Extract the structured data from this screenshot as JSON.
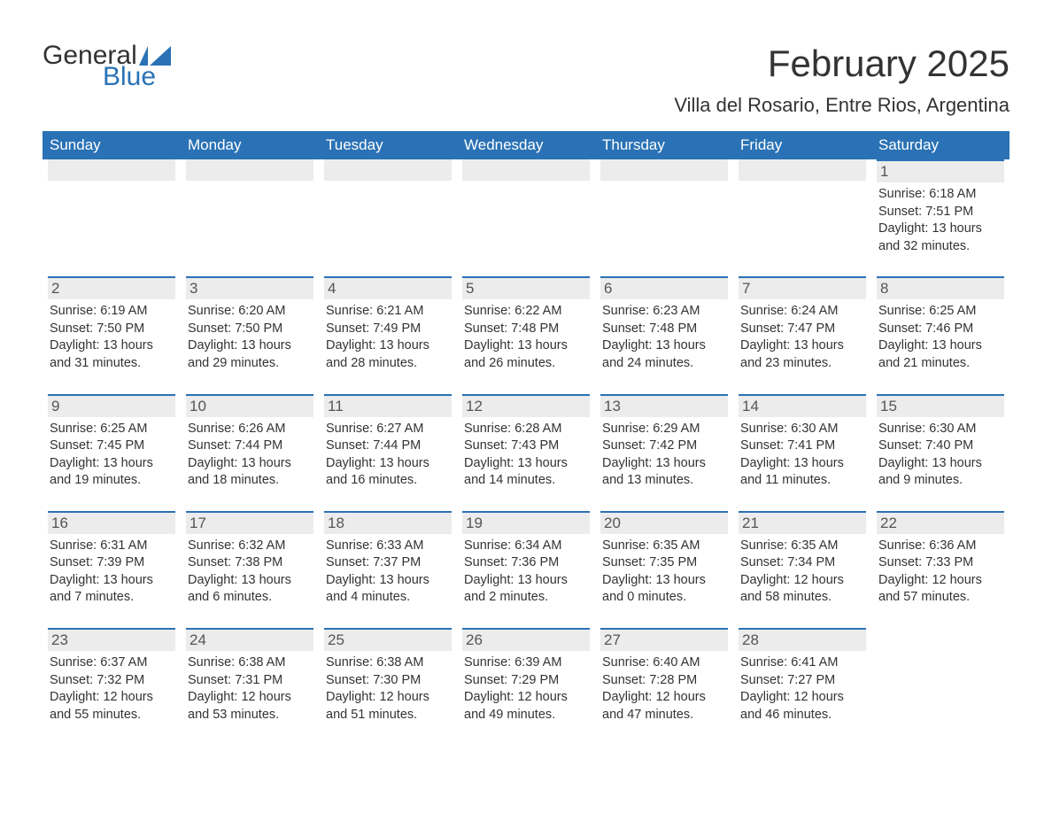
{
  "logo": {
    "text_general": "General",
    "text_blue": "Blue",
    "flag_color": "#2a72b5"
  },
  "header": {
    "month_title": "February 2025",
    "location": "Villa del Rosario, Entre Rios, Argentina",
    "title_fontsize": 42,
    "location_fontsize": 22,
    "title_color": "#333333"
  },
  "calendar": {
    "header_bg": "#2a72b5",
    "header_text_color": "#ffffff",
    "daynum_bg": "#ececec",
    "daynum_border_color": "#2a72b5",
    "body_text_color": "#333333",
    "background_color": "#ffffff",
    "weekdays": [
      "Sunday",
      "Monday",
      "Tuesday",
      "Wednesday",
      "Thursday",
      "Friday",
      "Saturday"
    ],
    "weeks": [
      [
        null,
        null,
        null,
        null,
        null,
        null,
        {
          "day": "1",
          "sunrise": "Sunrise: 6:18 AM",
          "sunset": "Sunset: 7:51 PM",
          "daylight": "Daylight: 13 hours and 32 minutes."
        }
      ],
      [
        {
          "day": "2",
          "sunrise": "Sunrise: 6:19 AM",
          "sunset": "Sunset: 7:50 PM",
          "daylight": "Daylight: 13 hours and 31 minutes."
        },
        {
          "day": "3",
          "sunrise": "Sunrise: 6:20 AM",
          "sunset": "Sunset: 7:50 PM",
          "daylight": "Daylight: 13 hours and 29 minutes."
        },
        {
          "day": "4",
          "sunrise": "Sunrise: 6:21 AM",
          "sunset": "Sunset: 7:49 PM",
          "daylight": "Daylight: 13 hours and 28 minutes."
        },
        {
          "day": "5",
          "sunrise": "Sunrise: 6:22 AM",
          "sunset": "Sunset: 7:48 PM",
          "daylight": "Daylight: 13 hours and 26 minutes."
        },
        {
          "day": "6",
          "sunrise": "Sunrise: 6:23 AM",
          "sunset": "Sunset: 7:48 PM",
          "daylight": "Daylight: 13 hours and 24 minutes."
        },
        {
          "day": "7",
          "sunrise": "Sunrise: 6:24 AM",
          "sunset": "Sunset: 7:47 PM",
          "daylight": "Daylight: 13 hours and 23 minutes."
        },
        {
          "day": "8",
          "sunrise": "Sunrise: 6:25 AM",
          "sunset": "Sunset: 7:46 PM",
          "daylight": "Daylight: 13 hours and 21 minutes."
        }
      ],
      [
        {
          "day": "9",
          "sunrise": "Sunrise: 6:25 AM",
          "sunset": "Sunset: 7:45 PM",
          "daylight": "Daylight: 13 hours and 19 minutes."
        },
        {
          "day": "10",
          "sunrise": "Sunrise: 6:26 AM",
          "sunset": "Sunset: 7:44 PM",
          "daylight": "Daylight: 13 hours and 18 minutes."
        },
        {
          "day": "11",
          "sunrise": "Sunrise: 6:27 AM",
          "sunset": "Sunset: 7:44 PM",
          "daylight": "Daylight: 13 hours and 16 minutes."
        },
        {
          "day": "12",
          "sunrise": "Sunrise: 6:28 AM",
          "sunset": "Sunset: 7:43 PM",
          "daylight": "Daylight: 13 hours and 14 minutes."
        },
        {
          "day": "13",
          "sunrise": "Sunrise: 6:29 AM",
          "sunset": "Sunset: 7:42 PM",
          "daylight": "Daylight: 13 hours and 13 minutes."
        },
        {
          "day": "14",
          "sunrise": "Sunrise: 6:30 AM",
          "sunset": "Sunset: 7:41 PM",
          "daylight": "Daylight: 13 hours and 11 minutes."
        },
        {
          "day": "15",
          "sunrise": "Sunrise: 6:30 AM",
          "sunset": "Sunset: 7:40 PM",
          "daylight": "Daylight: 13 hours and 9 minutes."
        }
      ],
      [
        {
          "day": "16",
          "sunrise": "Sunrise: 6:31 AM",
          "sunset": "Sunset: 7:39 PM",
          "daylight": "Daylight: 13 hours and 7 minutes."
        },
        {
          "day": "17",
          "sunrise": "Sunrise: 6:32 AM",
          "sunset": "Sunset: 7:38 PM",
          "daylight": "Daylight: 13 hours and 6 minutes."
        },
        {
          "day": "18",
          "sunrise": "Sunrise: 6:33 AM",
          "sunset": "Sunset: 7:37 PM",
          "daylight": "Daylight: 13 hours and 4 minutes."
        },
        {
          "day": "19",
          "sunrise": "Sunrise: 6:34 AM",
          "sunset": "Sunset: 7:36 PM",
          "daylight": "Daylight: 13 hours and 2 minutes."
        },
        {
          "day": "20",
          "sunrise": "Sunrise: 6:35 AM",
          "sunset": "Sunset: 7:35 PM",
          "daylight": "Daylight: 13 hours and 0 minutes."
        },
        {
          "day": "21",
          "sunrise": "Sunrise: 6:35 AM",
          "sunset": "Sunset: 7:34 PM",
          "daylight": "Daylight: 12 hours and 58 minutes."
        },
        {
          "day": "22",
          "sunrise": "Sunrise: 6:36 AM",
          "sunset": "Sunset: 7:33 PM",
          "daylight": "Daylight: 12 hours and 57 minutes."
        }
      ],
      [
        {
          "day": "23",
          "sunrise": "Sunrise: 6:37 AM",
          "sunset": "Sunset: 7:32 PM",
          "daylight": "Daylight: 12 hours and 55 minutes."
        },
        {
          "day": "24",
          "sunrise": "Sunrise: 6:38 AM",
          "sunset": "Sunset: 7:31 PM",
          "daylight": "Daylight: 12 hours and 53 minutes."
        },
        {
          "day": "25",
          "sunrise": "Sunrise: 6:38 AM",
          "sunset": "Sunset: 7:30 PM",
          "daylight": "Daylight: 12 hours and 51 minutes."
        },
        {
          "day": "26",
          "sunrise": "Sunrise: 6:39 AM",
          "sunset": "Sunset: 7:29 PM",
          "daylight": "Daylight: 12 hours and 49 minutes."
        },
        {
          "day": "27",
          "sunrise": "Sunrise: 6:40 AM",
          "sunset": "Sunset: 7:28 PM",
          "daylight": "Daylight: 12 hours and 47 minutes."
        },
        {
          "day": "28",
          "sunrise": "Sunrise: 6:41 AM",
          "sunset": "Sunset: 7:27 PM",
          "daylight": "Daylight: 12 hours and 46 minutes."
        },
        null
      ]
    ]
  }
}
